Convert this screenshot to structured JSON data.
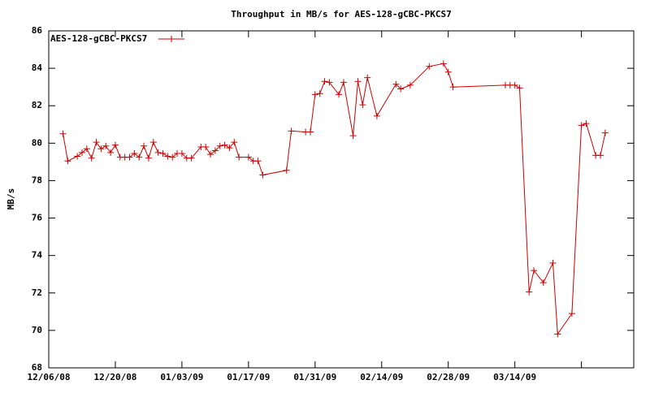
{
  "chart_data": {
    "type": "line",
    "title": "Throughput in MB/s for AES-128-gCBC-PKCS7",
    "y_label": "MB/s",
    "legend": "top-left",
    "grid": false,
    "xlim": [
      "2008-12-06",
      "2009-04-08"
    ],
    "xticks": [
      {
        "value": "2008-12-06",
        "label": "12/06/08"
      },
      {
        "value": "2008-12-20",
        "label": "12/20/08"
      },
      {
        "value": "2009-01-03",
        "label": "01/03/09"
      },
      {
        "value": "2009-01-17",
        "label": "01/17/09"
      },
      {
        "value": "2009-01-31",
        "label": "01/31/09"
      },
      {
        "value": "2009-02-14",
        "label": "02/14/09"
      },
      {
        "value": "2009-02-28",
        "label": "02/28/09"
      },
      {
        "value": "2009-03-14",
        "label": "03/14/09"
      },
      {
        "value": "2009-03-28",
        "label": null
      }
    ],
    "ylim": [
      68,
      86
    ],
    "yticks": [
      68,
      70,
      72,
      74,
      76,
      78,
      80,
      82,
      84,
      86
    ],
    "x": [
      "2008-12-09",
      "2008-12-10",
      "2008-12-12",
      "2008-12-13",
      "2008-12-14",
      "2008-12-15",
      "2008-12-16",
      "2008-12-17",
      "2008-12-18",
      "2008-12-19",
      "2008-12-20",
      "2008-12-21",
      "2008-12-22",
      "2008-12-23",
      "2008-12-24",
      "2008-12-25",
      "2008-12-26",
      "2008-12-27",
      "2008-12-28",
      "2008-12-29",
      "2008-12-30",
      "2008-12-31",
      "2009-01-01",
      "2009-01-02",
      "2009-01-03",
      "2009-01-04",
      "2009-01-05",
      "2009-01-07",
      "2009-01-08",
      "2009-01-09",
      "2009-01-10",
      "2009-01-11",
      "2009-01-12",
      "2009-01-13",
      "2009-01-14",
      "2009-01-15",
      "2009-01-17",
      "2009-01-18",
      "2009-01-19",
      "2009-01-20",
      "2009-01-25",
      "2009-01-26",
      "2009-01-29",
      "2009-01-30",
      "2009-01-31",
      "2009-02-01",
      "2009-02-02",
      "2009-02-03",
      "2009-02-05",
      "2009-02-06",
      "2009-02-08",
      "2009-02-09",
      "2009-02-10",
      "2009-02-11",
      "2009-02-13",
      "2009-02-17",
      "2009-02-18",
      "2009-02-20",
      "2009-02-24",
      "2009-02-27",
      "2009-02-28",
      "2009-03-01",
      "2009-03-12",
      "2009-03-13",
      "2009-03-14",
      "2009-03-15",
      "2009-03-17",
      "2009-03-18",
      "2009-03-20",
      "2009-03-22",
      "2009-03-23",
      "2009-03-26",
      "2009-03-28",
      "2009-03-29",
      "2009-03-31",
      "2009-04-01",
      "2009-04-02"
    ],
    "series": [
      {
        "name": "AES-128-gCBC-PKCS7",
        "color": "#cc0000",
        "values": [
          80.5,
          79.05,
          79.3,
          79.5,
          79.7,
          79.2,
          80.05,
          79.7,
          79.85,
          79.5,
          79.9,
          79.25,
          79.25,
          79.25,
          79.45,
          79.25,
          79.85,
          79.2,
          80.05,
          79.5,
          79.45,
          79.3,
          79.25,
          79.45,
          79.45,
          79.2,
          79.2,
          79.8,
          79.8,
          79.4,
          79.6,
          79.85,
          79.9,
          79.75,
          80.05,
          79.25,
          79.25,
          79.05,
          79.05,
          78.3,
          78.55,
          80.65,
          80.6,
          80.6,
          82.6,
          82.65,
          83.3,
          83.25,
          82.6,
          83.25,
          80.4,
          83.3,
          82.05,
          83.5,
          81.45,
          83.15,
          82.9,
          83.1,
          84.1,
          84.25,
          83.8,
          83.0,
          83.1,
          83.1,
          83.1,
          82.95,
          72.05,
          73.2,
          72.55,
          73.6,
          69.8,
          70.9,
          80.95,
          81.05,
          79.35,
          79.35,
          80.55
        ]
      }
    ]
  }
}
